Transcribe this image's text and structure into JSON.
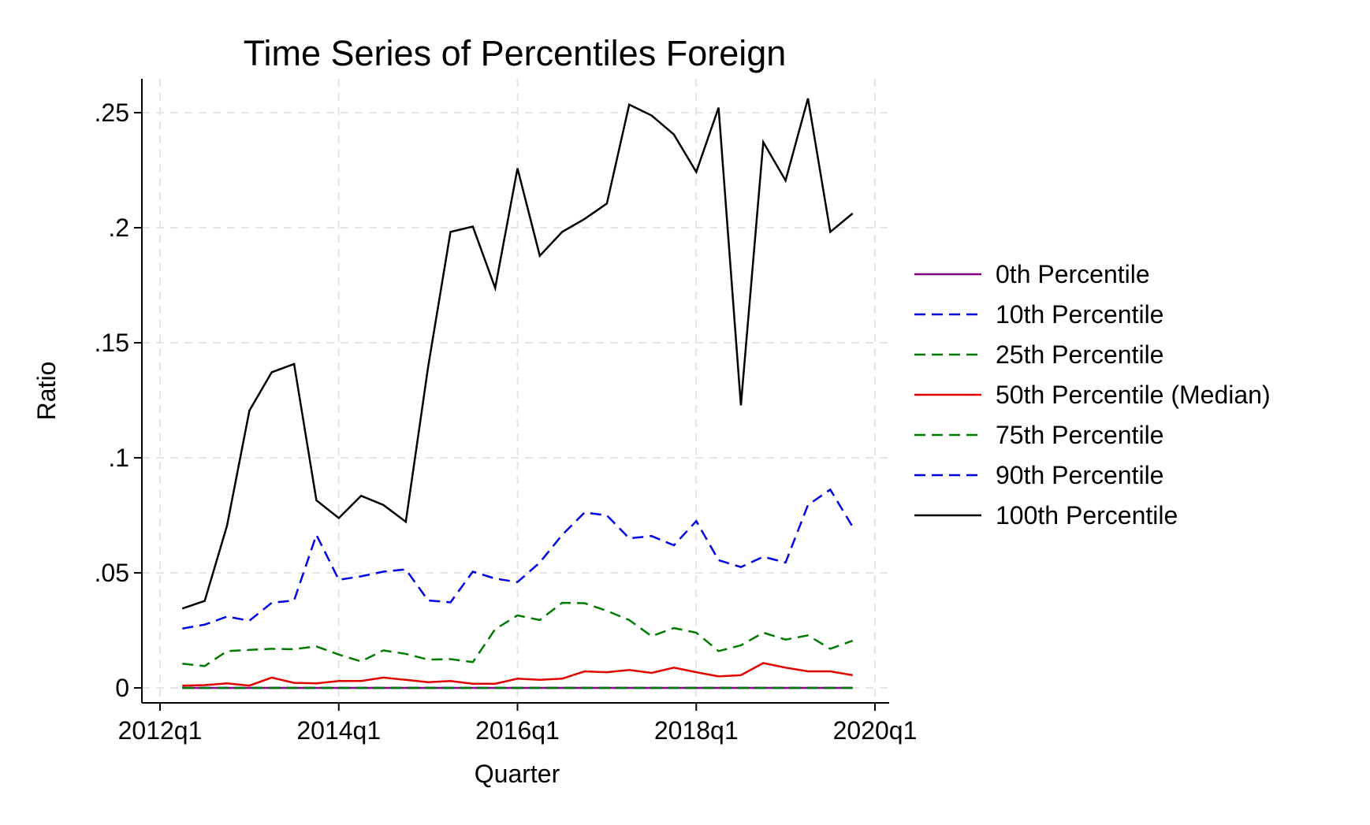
{
  "chart_data": {
    "type": "line",
    "title": "Time Series of Percentiles Foreign",
    "xlabel": "Quarter",
    "ylabel": "Ratio",
    "x_tick_labels": [
      "2012q1",
      "2014q1",
      "2016q1",
      "2018q1",
      "2020q1"
    ],
    "y_tick_labels": [
      "0",
      ".05",
      ".1",
      ".15",
      ".2",
      ".25"
    ],
    "y_ticks": [
      0,
      0.05,
      0.1,
      0.15,
      0.2,
      0.25
    ],
    "xlim": [
      "2012q1",
      "2020q1"
    ],
    "ylim": [
      -0.007,
      0.265
    ],
    "grid": true,
    "legend_position": "right",
    "x": [
      "2012q2",
      "2012q3",
      "2012q4",
      "2013q1",
      "2013q2",
      "2013q3",
      "2013q4",
      "2014q1",
      "2014q2",
      "2014q3",
      "2014q4",
      "2015q1",
      "2015q2",
      "2015q3",
      "2015q4",
      "2016q1",
      "2016q2",
      "2016q3",
      "2016q4",
      "2017q1",
      "2017q2",
      "2017q3",
      "2017q4",
      "2018q1",
      "2018q2",
      "2018q3",
      "2018q4",
      "2019q1",
      "2019q2",
      "2019q3",
      "2019q4"
    ],
    "series": [
      {
        "name": "0th Percentile",
        "color": "#800080",
        "dash": "solid",
        "values": [
          0,
          0,
          0,
          0,
          0,
          0,
          0,
          0,
          0,
          0,
          0,
          0,
          0,
          0,
          0,
          0,
          0,
          0,
          0,
          0,
          0,
          0,
          0,
          0,
          0,
          0,
          0,
          0,
          0,
          0,
          0
        ]
      },
      {
        "name": "10th Percentile",
        "color": "#0000e6",
        "dash": "dashed",
        "values": [
          0,
          0,
          0,
          0,
          0,
          0,
          0,
          0,
          0,
          0,
          0,
          0,
          0,
          0,
          0,
          0,
          0,
          0,
          0,
          0,
          0,
          0,
          0,
          0,
          0,
          0,
          0,
          0,
          0,
          0,
          0
        ]
      },
      {
        "name": "25th Percentile",
        "color": "#007a00",
        "dash": "dashed",
        "values": [
          0,
          0,
          0,
          0,
          0,
          0,
          0,
          0,
          0,
          0,
          0,
          0,
          0,
          0,
          0,
          0,
          0,
          0,
          0,
          0,
          0,
          0,
          0,
          0,
          0,
          0,
          0,
          0,
          0,
          0,
          0
        ]
      },
      {
        "name": "50th Percentile (Median)",
        "color": "#e00000",
        "dash": "solid",
        "values": [
          0.001,
          0.0012,
          0.002,
          0.001,
          0.0045,
          0.0022,
          0.002,
          0.003,
          0.003,
          0.0045,
          0.0035,
          0.0025,
          0.003,
          0.0018,
          0.0018,
          0.004,
          0.0035,
          0.004,
          0.0072,
          0.0068,
          0.0078,
          0.0065,
          0.0088,
          0.0068,
          0.005,
          0.0055,
          0.0108,
          0.0088,
          0.0072,
          0.0072,
          0.0055
        ]
      },
      {
        "name": "75th Percentile",
        "color": "#007a00",
        "dash": "dashed",
        "values": [
          0.0105,
          0.0095,
          0.016,
          0.0165,
          0.017,
          0.0168,
          0.018,
          0.0145,
          0.0115,
          0.0163,
          0.0148,
          0.0123,
          0.0125,
          0.0112,
          0.0255,
          0.0315,
          0.0295,
          0.037,
          0.0368,
          0.0335,
          0.0295,
          0.0225,
          0.026,
          0.024,
          0.016,
          0.0185,
          0.024,
          0.021,
          0.0228,
          0.017,
          0.0205
        ]
      },
      {
        "name": "90th Percentile",
        "color": "#0000e6",
        "dash": "dashed",
        "values": [
          0.0258,
          0.0275,
          0.031,
          0.0292,
          0.037,
          0.038,
          0.0665,
          0.047,
          0.0485,
          0.0505,
          0.0515,
          0.038,
          0.0372,
          0.0505,
          0.0475,
          0.046,
          0.0545,
          0.0665,
          0.0762,
          0.075,
          0.065,
          0.066,
          0.062,
          0.0725,
          0.0555,
          0.0525,
          0.057,
          0.0545,
          0.0795,
          0.0862,
          0.07
        ]
      },
      {
        "name": "100th Percentile",
        "color": "#000000",
        "dash": "solid",
        "values": [
          0.0345,
          0.0378,
          0.0705,
          0.1205,
          0.1372,
          0.1408,
          0.0815,
          0.0738,
          0.0835,
          0.0795,
          0.0722,
          0.1395,
          0.1982,
          0.2005,
          0.1738,
          0.2258,
          0.1878,
          0.1982,
          0.2038,
          0.2105,
          0.2535,
          0.2488,
          0.2405,
          0.2242,
          0.2522,
          0.1228,
          0.2372,
          0.2205,
          0.2562,
          0.1982,
          0.2062
        ]
      }
    ]
  }
}
